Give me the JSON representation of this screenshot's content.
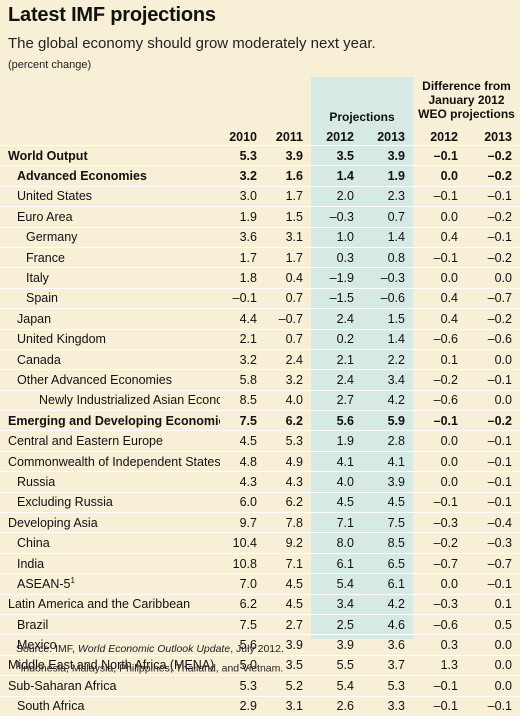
{
  "title": "Latest IMF projections",
  "subtitle": "The global economy should grow moderately next year.",
  "unit": "(percent change)",
  "table": {
    "group_projections": "Projections",
    "group_difference": "Difference from January 2012 WEO projections",
    "columns": [
      "2010",
      "2011",
      "2012",
      "2013",
      "2012",
      "2013"
    ],
    "rows": [
      {
        "name": "World Output",
        "level": 0,
        "bold": true,
        "values": [
          "5.3",
          "3.9",
          "3.5",
          "3.9",
          "–0.1",
          "–0.2"
        ]
      },
      {
        "name": "Advanced Economies",
        "level": 1,
        "bold": true,
        "values": [
          "3.2",
          "1.6",
          "1.4",
          "1.9",
          "0.0",
          "–0.2"
        ]
      },
      {
        "name": "United States",
        "level": 1,
        "bold": false,
        "values": [
          "3.0",
          "1.7",
          "2.0",
          "2.3",
          "–0.1",
          "–0.1"
        ]
      },
      {
        "name": "Euro Area",
        "level": 1,
        "bold": false,
        "values": [
          "1.9",
          "1.5",
          "–0.3",
          "0.7",
          "0.0",
          "–0.2"
        ]
      },
      {
        "name": "Germany",
        "level": 2,
        "bold": false,
        "values": [
          "3.6",
          "3.1",
          "1.0",
          "1.4",
          "0.4",
          "–0.1"
        ]
      },
      {
        "name": "France",
        "level": 2,
        "bold": false,
        "values": [
          "1.7",
          "1.7",
          "0.3",
          "0.8",
          "–0.1",
          "–0.2"
        ]
      },
      {
        "name": "Italy",
        "level": 2,
        "bold": false,
        "values": [
          "1.8",
          "0.4",
          "–1.9",
          "–0.3",
          "0.0",
          "0.0"
        ]
      },
      {
        "name": "Spain",
        "level": 2,
        "bold": false,
        "values": [
          "–0.1",
          "0.7",
          "–1.5",
          "–0.6",
          "0.4",
          "–0.7"
        ]
      },
      {
        "name": "Japan",
        "level": 1,
        "bold": false,
        "values": [
          "4.4",
          "–0.7",
          "2.4",
          "1.5",
          "0.4",
          "–0.2"
        ]
      },
      {
        "name": "United Kingdom",
        "level": 1,
        "bold": false,
        "values": [
          "2.1",
          "0.7",
          "0.2",
          "1.4",
          "–0.6",
          "–0.6"
        ]
      },
      {
        "name": "Canada",
        "level": 1,
        "bold": false,
        "values": [
          "3.2",
          "2.4",
          "2.1",
          "2.2",
          "0.1",
          "0.0"
        ]
      },
      {
        "name": "Other Advanced Economies",
        "level": 1,
        "bold": false,
        "values": [
          "5.8",
          "3.2",
          "2.4",
          "3.4",
          "–0.2",
          "–0.1"
        ]
      },
      {
        "name": "Newly Industrialized Asian Economies",
        "level": 3,
        "bold": false,
        "values": [
          "8.5",
          "4.0",
          "2.7",
          "4.2",
          "–0.6",
          "0.0"
        ]
      },
      {
        "name": "Emerging and Developing Economies",
        "level": 0,
        "bold": true,
        "values": [
          "7.5",
          "6.2",
          "5.6",
          "5.9",
          "–0.1",
          "–0.2"
        ]
      },
      {
        "name": "Central and Eastern Europe",
        "level": 0,
        "bold": false,
        "values": [
          "4.5",
          "5.3",
          "1.9",
          "2.8",
          "0.0",
          "–0.1"
        ]
      },
      {
        "name": "Commonwealth of Independent States",
        "level": 0,
        "bold": false,
        "values": [
          "4.8",
          "4.9",
          "4.1",
          "4.1",
          "0.0",
          "–0.1"
        ]
      },
      {
        "name": "Russia",
        "level": 1,
        "bold": false,
        "values": [
          "4.3",
          "4.3",
          "4.0",
          "3.9",
          "0.0",
          "–0.1"
        ]
      },
      {
        "name": "Excluding Russia",
        "level": 1,
        "bold": false,
        "values": [
          "6.0",
          "6.2",
          "4.5",
          "4.5",
          "–0.1",
          "–0.1"
        ]
      },
      {
        "name": "Developing Asia",
        "level": 0,
        "bold": false,
        "values": [
          "9.7",
          "7.8",
          "7.1",
          "7.5",
          "–0.3",
          "–0.4"
        ]
      },
      {
        "name": "China",
        "level": 1,
        "bold": false,
        "values": [
          "10.4",
          "9.2",
          "8.0",
          "8.5",
          "–0.2",
          "–0.3"
        ]
      },
      {
        "name": "India",
        "level": 1,
        "bold": false,
        "values": [
          "10.8",
          "7.1",
          "6.1",
          "6.5",
          "–0.7",
          "–0.7"
        ]
      },
      {
        "name": "ASEAN-5",
        "sup": "1",
        "level": 1,
        "bold": false,
        "values": [
          "7.0",
          "4.5",
          "5.4",
          "6.1",
          "0.0",
          "–0.1"
        ]
      },
      {
        "name": "Latin America and the Caribbean",
        "level": 0,
        "bold": false,
        "values": [
          "6.2",
          "4.5",
          "3.4",
          "4.2",
          "–0.3",
          "0.1"
        ]
      },
      {
        "name": "Brazil",
        "level": 1,
        "bold": false,
        "values": [
          "7.5",
          "2.7",
          "2.5",
          "4.6",
          "–0.6",
          "0.5"
        ]
      },
      {
        "name": "Mexico",
        "level": 1,
        "bold": false,
        "values": [
          "5.6",
          "3.9",
          "3.9",
          "3.6",
          "0.3",
          "0.0"
        ]
      },
      {
        "name": "Middle East and North Africa (MENA)",
        "level": 0,
        "bold": false,
        "values": [
          "5.0",
          "3.5",
          "5.5",
          "3.7",
          "1.3",
          "0.0"
        ]
      },
      {
        "name": "Sub-Saharan Africa",
        "level": 0,
        "bold": false,
        "values": [
          "5.3",
          "5.2",
          "5.4",
          "5.3",
          "–0.1",
          "0.0"
        ]
      },
      {
        "name": "South Africa",
        "level": 1,
        "bold": false,
        "values": [
          "2.9",
          "3.1",
          "2.6",
          "3.3",
          "–0.1",
          "–0.1"
        ]
      }
    ]
  },
  "source": {
    "prefix": "Source: IMF, ",
    "publication": "World Economic Outlook Update",
    "suffix": ", July 2012."
  },
  "footnote": {
    "marker": "1",
    "text": "Indonesia, Malaysia, Philippines, Thailand, and Vietnam."
  }
}
